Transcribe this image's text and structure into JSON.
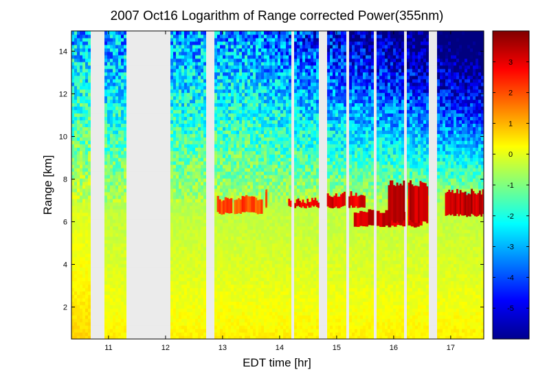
{
  "chart_data": {
    "type": "heatmap",
    "title": "2007 Oct16  Logarithm of Range corrected Power(355nm)",
    "xlabel": "EDT time [hr]",
    "ylabel": "Range [km]",
    "xlim": [
      10.35,
      17.58
    ],
    "ylim": [
      0.5,
      14.95
    ],
    "xticks": [
      11,
      12,
      13,
      14,
      15,
      16,
      17
    ],
    "yticks": [
      2,
      4,
      6,
      8,
      10,
      12,
      14
    ],
    "grid": false,
    "colorbar": {
      "position": "right",
      "colormap": "jet",
      "range": [
        -6,
        4
      ],
      "ticks": [
        3,
        2,
        1,
        0,
        -1,
        -2,
        -3,
        -4,
        -5
      ]
    },
    "no_data_gaps": [
      [
        10.68,
        10.95
      ],
      [
        11.3,
        12.08
      ],
      [
        12.7,
        12.88
      ],
      [
        13.18,
        13.21
      ],
      [
        14.21,
        14.27
      ],
      [
        14.7,
        14.83
      ],
      [
        15.16,
        15.21
      ],
      [
        15.65,
        15.69
      ],
      [
        16.2,
        16.24
      ],
      [
        16.64,
        16.76
      ]
    ],
    "cloud_layers": [
      {
        "x": [
          12.9,
          13.7
        ],
        "y": [
          6.4,
          7.1
        ],
        "value": 2.5
      },
      {
        "x": [
          13.75,
          13.78
        ],
        "y": [
          6.7,
          7.4
        ],
        "value": 2.5
      },
      {
        "x": [
          14.15,
          14.8
        ],
        "y": [
          6.7,
          7.0
        ],
        "value": 3.5
      },
      {
        "x": [
          14.8,
          15.5
        ],
        "y": [
          6.7,
          7.3
        ],
        "value": 3.5
      },
      {
        "x": [
          15.3,
          16.5
        ],
        "y": [
          5.8,
          6.5
        ],
        "value": 3.6
      },
      {
        "x": [
          15.9,
          16.6
        ],
        "y": [
          6.0,
          7.8
        ],
        "value": 3.7
      },
      {
        "x": [
          16.9,
          17.58
        ],
        "y": [
          6.3,
          7.4
        ],
        "value": 3.8
      }
    ]
  }
}
